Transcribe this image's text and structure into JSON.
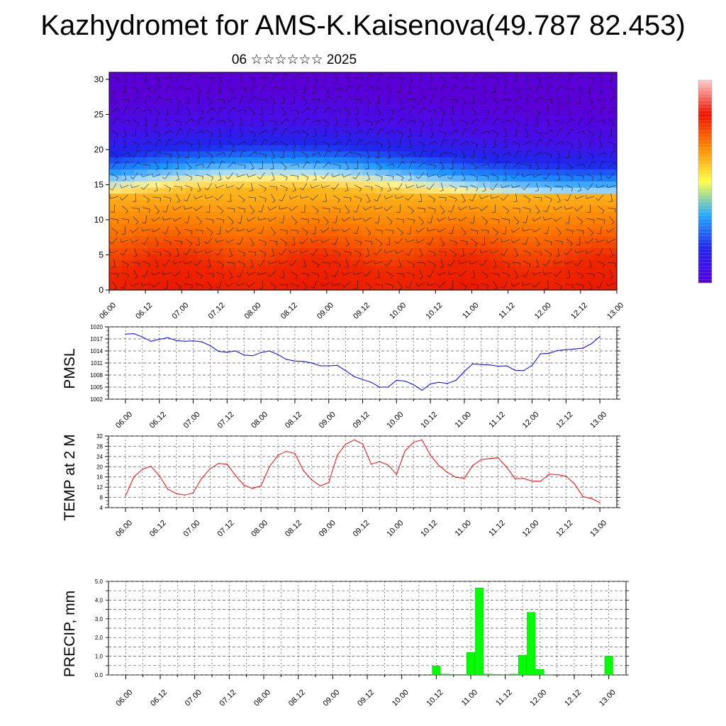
{
  "title": "Kazhydromet for AMS-K.Kaisenova(49.787 82.453)",
  "subtitle": "06 ☆☆☆☆☆☆ 2025",
  "time_labels": [
    "06.00",
    "06.12",
    "07.00",
    "07.12",
    "08.00",
    "08.12",
    "09.00",
    "09.12",
    "10.00",
    "10.12",
    "11.00",
    "11.12",
    "12.00",
    "12.12",
    "13.00"
  ],
  "chart_data": [
    {
      "type": "heatmap",
      "title": "",
      "xlabel": "",
      "ylabel": "",
      "ylim": [
        0,
        31
      ],
      "yticks": [
        0,
        5,
        10,
        15,
        20,
        25,
        30
      ],
      "x": [
        "06.00",
        "06.12",
        "07.00",
        "07.12",
        "08.00",
        "08.12",
        "09.00",
        "09.12",
        "10.00",
        "10.12",
        "11.00",
        "11.12",
        "12.00",
        "12.12",
        "13.00"
      ],
      "overlay": "wind barbs",
      "colorbar": {
        "position": "right",
        "colors": [
          "#5500dd",
          "#2222ee",
          "#22aaff",
          "#ffff44",
          "#ff8800",
          "#ee1100",
          "#ffcccc"
        ]
      }
    },
    {
      "type": "line",
      "ylabel": "PMSL",
      "ylim": [
        1002,
        1020
      ],
      "yticks": [
        1002,
        1005,
        1008,
        1011,
        1014,
        1017,
        1020
      ],
      "color": "#0000ff",
      "grid": true,
      "x": [
        0,
        3,
        6,
        9,
        12,
        15,
        18,
        21,
        24,
        27,
        30,
        33,
        36,
        39,
        42,
        45,
        48,
        51,
        54,
        57,
        60,
        63,
        66,
        69,
        72,
        75,
        78,
        81,
        84,
        87,
        90,
        93,
        96,
        99,
        102,
        105,
        108,
        111,
        114,
        117,
        120,
        123,
        126,
        129,
        132,
        135,
        138,
        141,
        144,
        147,
        150,
        153,
        156,
        159,
        162,
        165,
        168
      ],
      "values": [
        1018.2,
        1018.3,
        1017.5,
        1016.4,
        1016.9,
        1017.3,
        1016.6,
        1016.4,
        1016.5,
        1016.3,
        1015.3,
        1013.9,
        1013.7,
        1014.0,
        1013.0,
        1012.8,
        1013.6,
        1014.0,
        1013.1,
        1011.9,
        1011.5,
        1011.4,
        1011.0,
        1010.3,
        1010.3,
        1010.4,
        1009.1,
        1007.6,
        1006.9,
        1006.2,
        1005.0,
        1005.0,
        1006.7,
        1006.5,
        1005.6,
        1004.2,
        1005.8,
        1006.2,
        1005.9,
        1006.7,
        1008.9,
        1010.8,
        1010.6,
        1010.5,
        1010.2,
        1010.3,
        1009.2,
        1009.1,
        1010.4,
        1013.3,
        1013.4,
        1014.1,
        1014.3,
        1014.5,
        1014.7,
        1015.8,
        1017.6
      ]
    },
    {
      "type": "line",
      "ylabel": "TEMP at 2 M",
      "ylim": [
        4,
        32
      ],
      "yticks": [
        4,
        8,
        12,
        16,
        20,
        24,
        28,
        32
      ],
      "color": "#ff0000",
      "grid": true,
      "x": [
        0,
        3,
        6,
        9,
        12,
        15,
        18,
        21,
        24,
        27,
        30,
        33,
        36,
        39,
        42,
        45,
        48,
        51,
        54,
        57,
        60,
        63,
        66,
        69,
        72,
        75,
        78,
        81,
        84,
        87,
        90,
        93,
        96,
        99,
        102,
        105,
        108,
        111,
        114,
        117,
        120,
        123,
        126,
        129,
        132,
        135,
        138,
        141,
        144,
        147,
        150,
        153,
        156,
        159,
        162,
        165,
        168
      ],
      "values": [
        8.5,
        16.0,
        19.0,
        20.2,
        16.5,
        11.2,
        9.5,
        8.9,
        9.8,
        15.5,
        19.2,
        21.3,
        21.0,
        16.5,
        12.8,
        11.5,
        12.5,
        20.0,
        24.5,
        26.0,
        25.2,
        18.5,
        14.8,
        12.5,
        13.8,
        24.5,
        28.8,
        30.5,
        28.9,
        21.0,
        22.0,
        20.7,
        17.0,
        26.2,
        29.6,
        30.5,
        24.5,
        20.5,
        17.8,
        15.8,
        15.5,
        20.5,
        22.8,
        23.2,
        23.5,
        19.8,
        15.3,
        15.4,
        14.4,
        14.3,
        17.1,
        16.9,
        16.3,
        13.3,
        8.3,
        7.6,
        6.0
      ]
    },
    {
      "type": "bar",
      "ylabel": "PRECIP, mm",
      "ylim": [
        0,
        5
      ],
      "yticks": [
        "0.0",
        "1.0",
        "2.0",
        "3.0",
        "4.0",
        "5.0"
      ],
      "color": "#00ff00",
      "grid": true,
      "x": [
        108,
        111,
        114,
        117,
        120,
        123,
        126,
        129,
        132,
        135,
        138,
        141,
        144,
        147,
        168
      ],
      "values": [
        0.48,
        0.05,
        0.03,
        0.03,
        1.2,
        4.65,
        0.05,
        0.03,
        0.02,
        0.05,
        1.05,
        3.35,
        0.3,
        0.02,
        1.02
      ]
    }
  ]
}
